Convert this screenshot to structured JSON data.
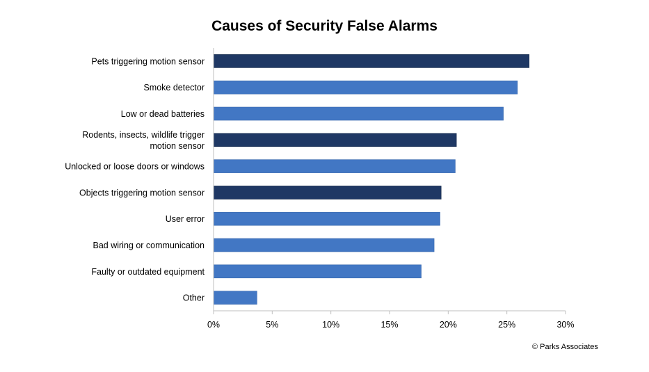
{
  "chart_data": {
    "type": "bar",
    "orientation": "horizontal",
    "title": "Causes of Security False Alarms",
    "categories": [
      "Pets triggering motion sensor",
      "Smoke detector",
      "Low or dead batteries",
      "Rodents, insects, wildlife trigger motion sensor",
      "Unlocked or loose doors or windows",
      "Objects triggering motion sensor",
      "User error",
      "Bad wiring or communication",
      "Faulty or outdated equipment",
      "Other"
    ],
    "category_lines": [
      [
        "Pets triggering motion sensor"
      ],
      [
        "Smoke detector"
      ],
      [
        "Low or dead batteries"
      ],
      [
        "Rodents, insects, wildlife trigger",
        "motion sensor"
      ],
      [
        "Unlocked or loose doors or windows"
      ],
      [
        "Objects triggering motion sensor"
      ],
      [
        "User error"
      ],
      [
        "Bad wiring or communication"
      ],
      [
        "Faulty or outdated equipment"
      ],
      [
        "Other"
      ]
    ],
    "values": [
      26.9,
      25.9,
      24.7,
      20.7,
      20.6,
      19.4,
      19.3,
      18.8,
      17.7,
      3.7
    ],
    "highlight": [
      true,
      false,
      false,
      true,
      false,
      true,
      false,
      false,
      false,
      false
    ],
    "xlim": [
      0,
      30
    ],
    "xticks": [
      0,
      5,
      10,
      15,
      20,
      25,
      30
    ],
    "xtick_labels": [
      "0%",
      "5%",
      "10%",
      "15%",
      "20%",
      "25%",
      "30%"
    ],
    "grid": false,
    "colors": {
      "highlight": "#1f3864",
      "default": "#4277c4"
    }
  },
  "credit": "© Parks Associates"
}
